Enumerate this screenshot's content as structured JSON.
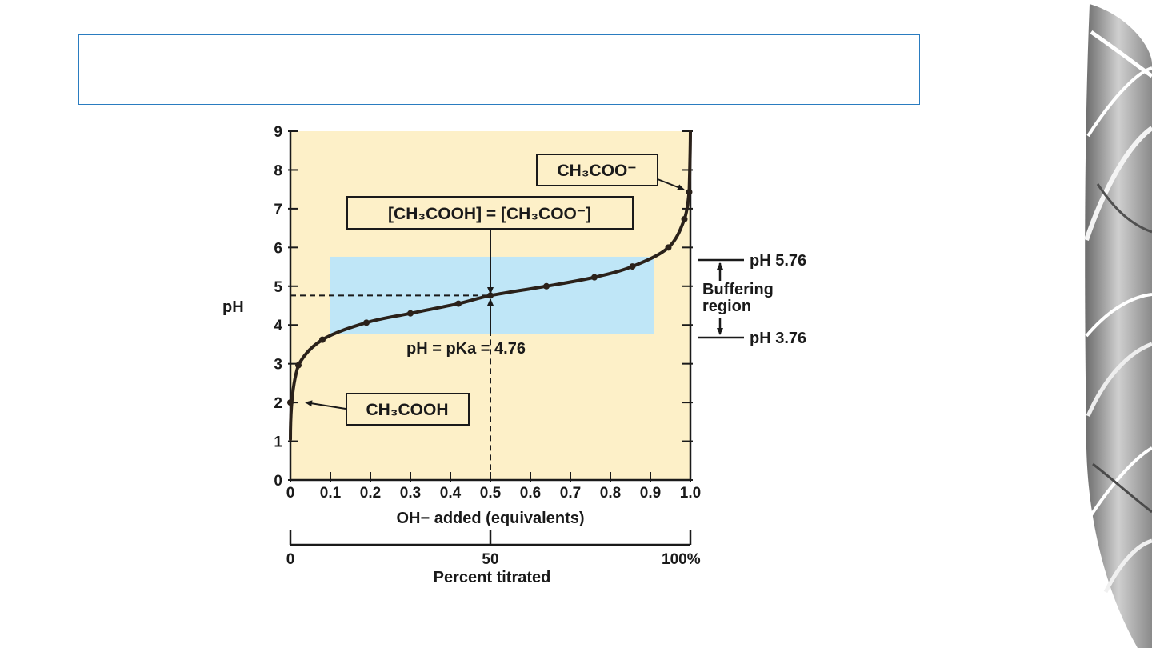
{
  "slide": {
    "title": ""
  },
  "colors": {
    "plot_background": "#fdf0c8",
    "buffer_band": "#bfe6f7",
    "curve": "#2a211a"
  },
  "chart_data": {
    "type": "line",
    "title": "",
    "xlabel": "OH− added (equivalents)",
    "ylabel": "pH",
    "xlim": [
      0,
      1.0
    ],
    "ylim": [
      0,
      9
    ],
    "x_ticks": [
      "0",
      "0.1",
      "0.2",
      "0.3",
      "0.4",
      "0.5",
      "0.6",
      "0.7",
      "0.8",
      "0.9",
      "1.0"
    ],
    "y_ticks": [
      "0",
      "1",
      "2",
      "3",
      "4",
      "5",
      "6",
      "7",
      "8",
      "9"
    ],
    "grid": false,
    "series": [
      {
        "x": [
          0.0,
          0.02,
          0.08,
          0.19,
          0.3,
          0.42,
          0.5,
          0.64,
          0.76,
          0.855,
          0.945,
          0.985,
          0.997
        ],
        "y": [
          2.0,
          2.96,
          3.62,
          4.06,
          4.3,
          4.55,
          4.76,
          5.0,
          5.23,
          5.51,
          6.0,
          6.73,
          7.43
        ]
      }
    ],
    "buffer_region": {
      "x": [
        0.1,
        0.91
      ],
      "y": [
        3.76,
        5.76
      ]
    },
    "pKa_marker": {
      "x": 0.5,
      "y": 4.76
    },
    "annotations": {
      "midpoint_label": "[CH₃COOH] = [CH₃COO⁻]",
      "pka_label": "pH = pKa = 4.76",
      "start_species": "CH₃COOH",
      "end_species": "CH₃COO⁻",
      "buffer_upper": "pH 5.76",
      "buffer_lower": "pH 3.76",
      "buffer_label_line1": "Buffering",
      "buffer_label_line2": "region"
    },
    "secondary_axis": {
      "label": "Percent titrated",
      "ticks": [
        "0",
        "50",
        "100%"
      ]
    }
  }
}
